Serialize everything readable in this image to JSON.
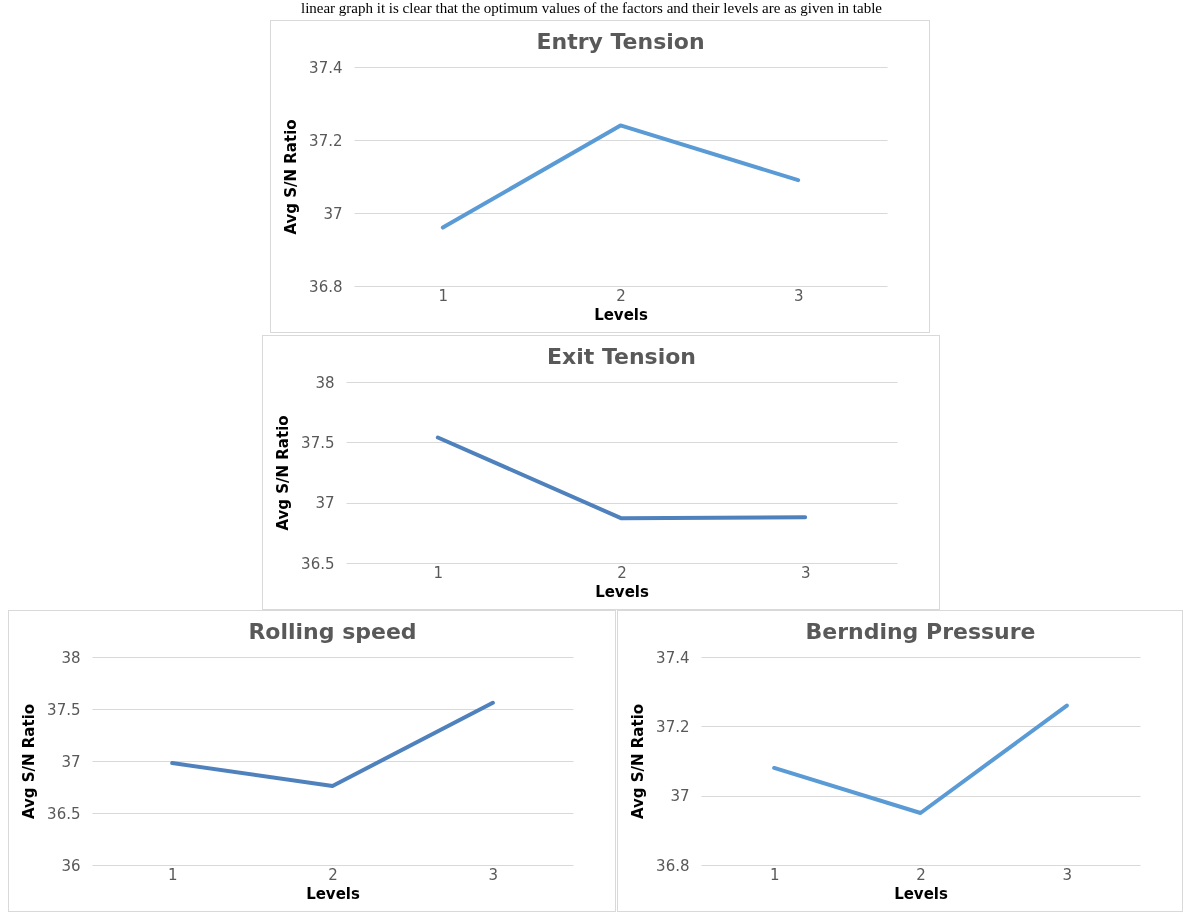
{
  "chart_data": [
    {
      "type": "line",
      "title": "Entry Tension",
      "xlabel": "Levels",
      "ylabel": "Avg S/N Ratio",
      "annotations": [
        "linear graph it is clear that the optimum values of the factors and their levels are as given in table"
      ],
      "categories": [
        "1",
        "2",
        "3"
      ],
      "series": [
        {
          "color": "#5b9bd5",
          "values": [
            36.96,
            37.24,
            37.09
          ]
        }
      ],
      "ylim": [
        36.8,
        37.4
      ],
      "yticks": [
        36.8,
        37,
        37.2,
        37.4
      ],
      "grid": "y"
    },
    {
      "type": "line",
      "title": "Exit Tension",
      "xlabel": "Levels",
      "ylabel": "Avg S/N Ratio",
      "categories": [
        "1",
        "2",
        "3"
      ],
      "series": [
        {
          "color": "#4f81bd",
          "values": [
            37.54,
            36.87,
            36.88
          ]
        }
      ],
      "ylim": [
        36.5,
        38
      ],
      "yticks": [
        36.5,
        37,
        37.5,
        38
      ],
      "grid": "y"
    },
    {
      "type": "line",
      "title": "Rolling speed",
      "xlabel": "Levels",
      "ylabel": "Avg S/N Ratio",
      "categories": [
        "1",
        "2",
        "3"
      ],
      "series": [
        {
          "color": "#4f81bd",
          "values": [
            36.98,
            36.76,
            37.56
          ]
        }
      ],
      "ylim": [
        36,
        38
      ],
      "yticks": [
        36,
        36.5,
        37,
        37.5,
        38
      ],
      "grid": "y"
    },
    {
      "type": "line",
      "title": "Bernding Pressure",
      "xlabel": "Levels",
      "ylabel": "Avg S/N Ratio",
      "categories": [
        "1",
        "2",
        "3"
      ],
      "series": [
        {
          "color": "#5b9bd5",
          "values": [
            37.08,
            36.95,
            37.26
          ]
        }
      ],
      "ylim": [
        36.8,
        37.4
      ],
      "yticks": [
        36.8,
        37,
        37.2,
        37.4
      ],
      "grid": "y"
    }
  ]
}
